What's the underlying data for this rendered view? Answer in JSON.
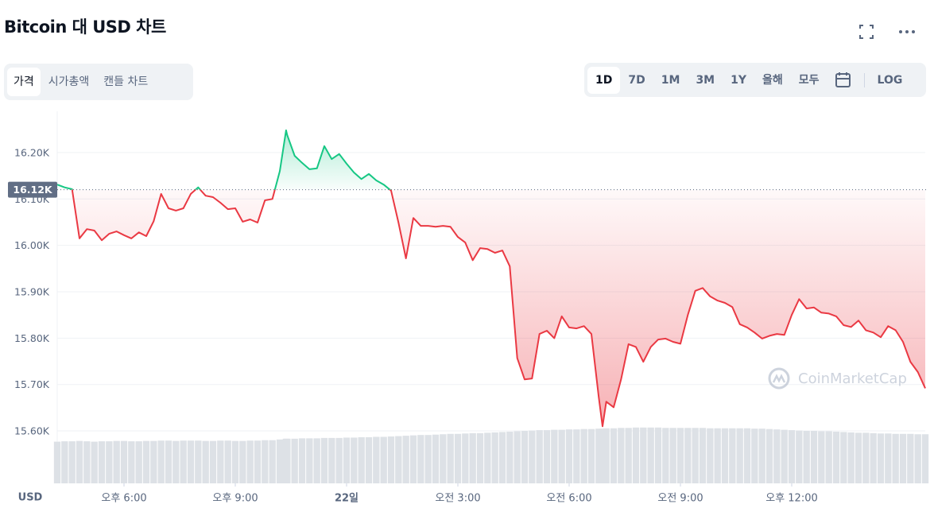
{
  "header": {
    "title": "Bitcoin 대 USD 차트"
  },
  "tabs": [
    "가격",
    "시가총액",
    "캔들 차트"
  ],
  "ranges": [
    "1D",
    "7D",
    "1M",
    "3M",
    "1Y",
    "올해",
    "모두"
  ],
  "log_label": "LOG",
  "chart_data": {
    "type": "line",
    "ylabel": "USD",
    "watermark": "CoinMarketCap",
    "reference": {
      "value": 16120,
      "label": "16.12K"
    },
    "x": [
      16.2,
      16.4,
      16.6,
      16.8,
      17.0,
      17.2,
      17.4,
      17.6,
      17.8,
      18.0,
      18.2,
      18.4,
      18.6,
      18.8,
      19.0,
      19.2,
      19.4,
      19.6,
      19.8,
      20.0,
      20.2,
      20.4,
      20.6,
      20.8,
      21.0,
      21.2,
      21.4,
      21.6,
      21.8,
      22.0,
      22.2,
      22.37,
      22.4,
      22.6,
      22.8,
      23.0,
      23.2,
      23.4,
      23.6,
      23.8,
      24.0,
      24.2,
      24.4,
      24.6,
      24.8,
      25.0,
      25.2,
      25.4,
      25.6,
      25.8,
      26.0,
      26.2,
      26.4,
      26.6,
      26.8,
      27.0,
      27.2,
      27.4,
      27.6,
      27.8,
      28.0,
      28.2,
      28.4,
      28.6,
      28.8,
      29.0,
      29.2,
      29.4,
      29.6,
      29.8,
      30.0,
      30.2,
      30.4,
      30.6,
      30.8,
      30.9,
      31.0,
      31.2,
      31.4,
      31.6,
      31.8,
      32.0,
      32.2,
      32.4,
      32.6,
      32.8,
      33.0,
      33.2,
      33.4,
      33.6,
      33.8,
      34.0,
      34.2,
      34.4,
      34.6,
      34.8,
      35.0,
      35.2,
      35.4,
      35.6,
      35.8,
      36.0,
      36.2,
      36.4,
      36.6,
      36.8,
      37.0,
      37.2,
      37.4,
      37.6,
      37.8,
      38.0,
      38.2,
      38.4,
      38.6,
      38.8,
      39.0,
      39.2,
      39.4,
      39.6
    ],
    "xlim": [
      16.2,
      39.6
    ],
    "xticks": [
      {
        "value": 18,
        "label": "오후 6:00"
      },
      {
        "value": 21,
        "label": "오후 9:00"
      },
      {
        "value": 24,
        "label": "22일"
      },
      {
        "value": 27,
        "label": "오전 3:00"
      },
      {
        "value": 30,
        "label": "오전 6:00"
      },
      {
        "value": 33,
        "label": "오전 9:00"
      },
      {
        "value": 36,
        "label": "오후 12:00"
      }
    ],
    "ylim": [
      15487,
      16289
    ],
    "yticks": [
      {
        "value": 15600,
        "label": "15.60K"
      },
      {
        "value": 15700,
        "label": "15.70K"
      },
      {
        "value": 15800,
        "label": "15.80K"
      },
      {
        "value": 15900,
        "label": "15.90K"
      },
      {
        "value": 16000,
        "label": "16.00K"
      },
      {
        "value": 16100,
        "label": "16.10K"
      },
      {
        "value": 16200,
        "label": "16.20K"
      }
    ],
    "y2lim": [
      0,
      100
    ],
    "grid": true,
    "series": [
      {
        "color": "#ea3943",
        "color_above": "#16c784",
        "values": [
          16131,
          16125,
          16121,
          16015,
          16035,
          16032,
          16011,
          16025,
          16030,
          16022,
          16015,
          16028,
          16020,
          16052,
          16111,
          16080,
          16075,
          16080,
          16111,
          16125,
          16107,
          16104,
          16092,
          16078,
          16080,
          16051,
          16056,
          16049,
          16097,
          16100,
          16160,
          16248,
          16238,
          16193,
          16178,
          16164,
          16166,
          16214,
          16186,
          16197,
          16176,
          16157,
          16143,
          16154,
          16140,
          16131,
          16118,
          16049,
          15972,
          16059,
          16042,
          16042,
          16040,
          16042,
          16040,
          16018,
          16006,
          15968,
          15994,
          15992,
          15984,
          15989,
          15955,
          15757,
          15711,
          15713,
          15809,
          15816,
          15800,
          15847,
          15823,
          15821,
          15826,
          15809,
          15672,
          15610,
          15663,
          15651,
          15711,
          15787,
          15781,
          15749,
          15781,
          15797,
          15799,
          15792,
          15788,
          15850,
          15902,
          15908,
          15890,
          15881,
          15876,
          15867,
          15830,
          15823,
          15812,
          15799,
          15805,
          15809,
          15807,
          15850,
          15884,
          15864,
          15866,
          15855,
          15853,
          15847,
          15828,
          15824,
          15838,
          15817,
          15812,
          15802,
          15826,
          15817,
          15792,
          15749,
          15727,
          15692
        ]
      },
      {
        "axis": "y2",
        "color": "#dde1e6",
        "values": [
          11.2,
          11.3,
          11.3,
          11.4,
          11.3,
          11.2,
          11.3,
          11.3,
          11.4,
          11.4,
          11.3,
          11.3,
          11.4,
          11.4,
          11.5,
          11.5,
          11.4,
          11.5,
          11.5,
          11.5,
          11.4,
          11.4,
          11.5,
          11.5,
          11.4,
          11.4,
          11.5,
          11.5,
          11.6,
          11.6,
          11.8,
          12.0,
          12.0,
          12.0,
          12.1,
          12.1,
          12.1,
          12.2,
          12.2,
          12.2,
          12.3,
          12.3,
          12.4,
          12.4,
          12.5,
          12.5,
          12.6,
          12.7,
          12.8,
          12.9,
          13.0,
          13.0,
          13.1,
          13.2,
          13.3,
          13.3,
          13.4,
          13.5,
          13.5,
          13.6,
          13.7,
          13.8,
          13.9,
          14.0,
          14.1,
          14.2,
          14.3,
          14.3,
          14.4,
          14.4,
          14.5,
          14.5,
          14.6,
          14.6,
          14.7,
          14.7,
          14.8,
          14.8,
          14.9,
          14.9,
          15.0,
          15.0,
          15.0,
          15.0,
          14.9,
          14.9,
          14.9,
          14.9,
          14.9,
          14.9,
          14.8,
          14.8,
          14.8,
          14.8,
          14.8,
          14.8,
          14.7,
          14.7,
          14.6,
          14.5,
          14.4,
          14.3,
          14.2,
          14.1,
          14.1,
          14.0,
          14.0,
          13.9,
          13.8,
          13.7,
          13.6,
          13.6,
          13.5,
          13.4,
          13.4,
          13.3,
          13.3,
          13.3,
          13.2,
          13.2
        ]
      }
    ]
  }
}
